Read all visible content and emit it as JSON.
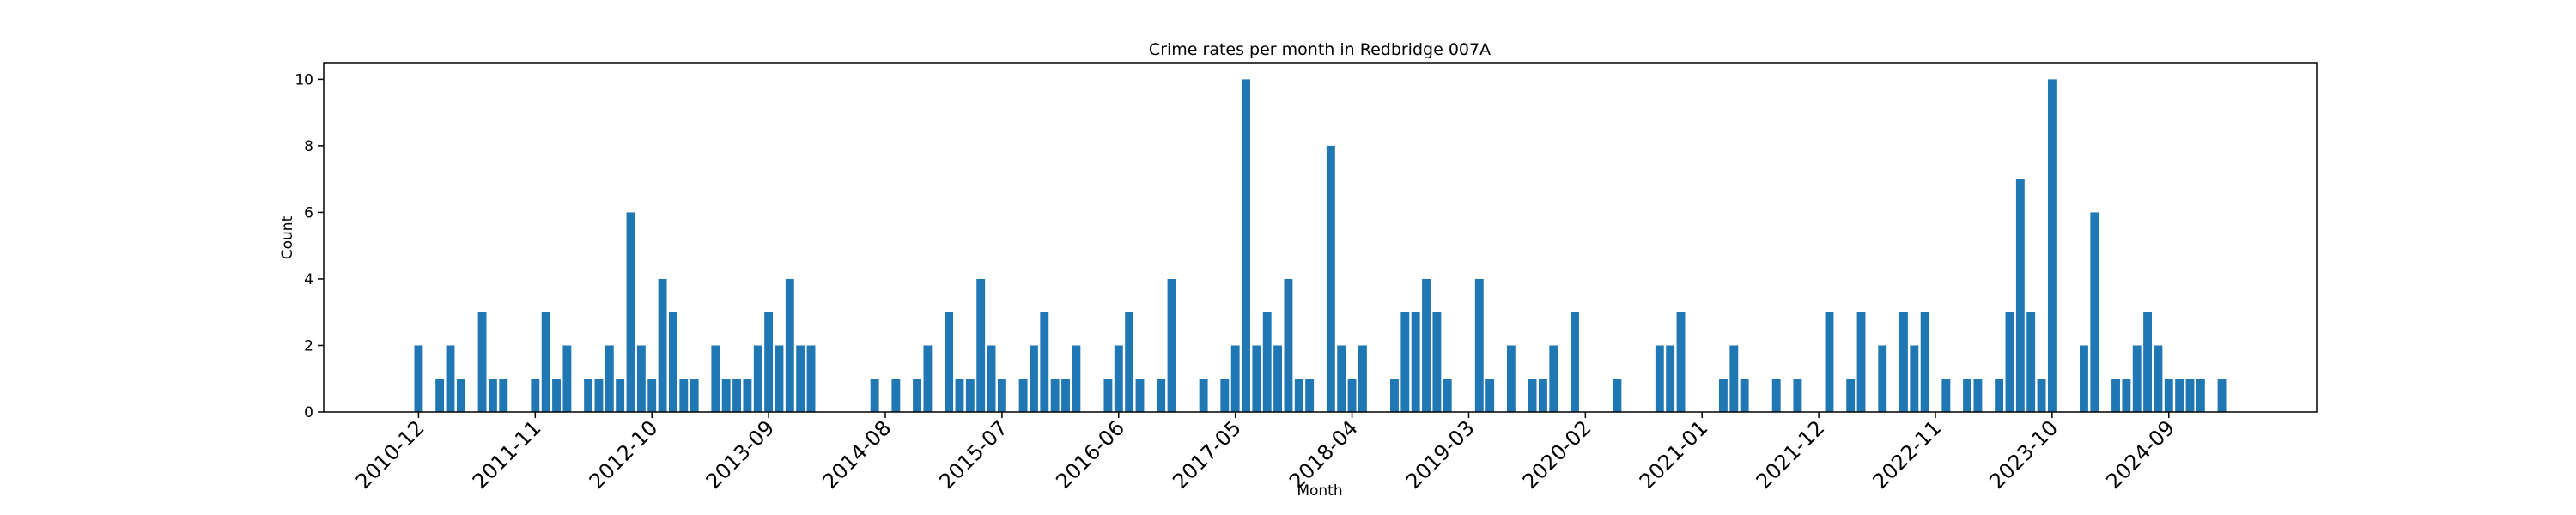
{
  "chart_data": {
    "type": "bar",
    "title": "Crime rates per month in Redbridge 007A",
    "x_label": "Month",
    "y_label": "Count",
    "color": "#1f77b4",
    "categories": [
      "2010-12",
      null,
      null,
      null,
      null,
      null,
      null,
      null,
      null,
      null,
      null,
      "2011-11",
      null,
      null,
      null,
      null,
      null,
      null,
      null,
      null,
      null,
      null,
      "2012-10",
      null,
      null,
      null,
      null,
      null,
      null,
      null,
      null,
      null,
      null,
      "2013-09",
      null,
      null,
      null,
      null,
      null,
      null,
      null,
      null,
      null,
      null,
      "2014-08",
      null,
      null,
      null,
      null,
      null,
      null,
      null,
      null,
      null,
      null,
      "2015-07",
      null,
      null,
      null,
      null,
      null,
      null,
      null,
      null,
      null,
      null,
      "2016-06",
      null,
      null,
      null,
      null,
      null,
      null,
      null,
      null,
      null,
      null,
      "2017-05",
      null,
      null,
      null,
      null,
      null,
      null,
      null,
      null,
      null,
      null,
      "2018-04",
      null,
      null,
      null,
      null,
      null,
      null,
      null,
      null,
      null,
      null,
      "2019-03",
      null,
      null,
      null,
      null,
      null,
      null,
      null,
      null,
      null,
      null,
      "2020-02",
      null,
      null,
      null,
      null,
      null,
      null,
      null,
      null,
      null,
      null,
      "2021-01",
      null,
      null,
      null,
      null,
      null,
      null,
      null,
      null,
      null,
      null,
      "2021-12",
      null,
      null,
      null,
      null,
      null,
      null,
      null,
      null,
      null,
      null,
      "2022-11",
      null,
      null,
      null,
      null,
      null,
      null,
      null,
      null,
      null,
      null,
      "2023-10",
      null,
      null,
      null,
      null,
      null,
      null,
      null,
      null,
      null,
      null,
      "2024-09",
      null,
      null,
      null,
      null,
      null
    ],
    "values": [
      2,
      0,
      1,
      2,
      1,
      0,
      3,
      1,
      1,
      0,
      0,
      1,
      3,
      1,
      2,
      0,
      1,
      1,
      2,
      1,
      6,
      2,
      1,
      4,
      3,
      1,
      1,
      0,
      2,
      1,
      1,
      1,
      2,
      3,
      2,
      4,
      2,
      2,
      0,
      0,
      0,
      0,
      0,
      1,
      0,
      1,
      0,
      1,
      2,
      0,
      3,
      1,
      1,
      4,
      2,
      1,
      0,
      1,
      2,
      3,
      1,
      1,
      2,
      0,
      0,
      1,
      2,
      3,
      1,
      0,
      1,
      4,
      0,
      0,
      1,
      0,
      1,
      2,
      10,
      2,
      3,
      2,
      4,
      1,
      1,
      0,
      8,
      2,
      1,
      2,
      0,
      0,
      1,
      3,
      3,
      4,
      3,
      1,
      0,
      0,
      4,
      1,
      0,
      2,
      0,
      1,
      1,
      2,
      0,
      3,
      0,
      0,
      0,
      1,
      0,
      0,
      0,
      2,
      2,
      3,
      0,
      0,
      0,
      1,
      2,
      1,
      0,
      0,
      1,
      0,
      1,
      0,
      0,
      3,
      0,
      1,
      3,
      0,
      2,
      0,
      3,
      2,
      3,
      0,
      1,
      0,
      1,
      1,
      0,
      1,
      3,
      7,
      3,
      1,
      10,
      0,
      0,
      2,
      6,
      0,
      1,
      1,
      2,
      3,
      2,
      1,
      1,
      1,
      1,
      0,
      1
    ],
    "ylim": [
      0,
      10.5
    ],
    "yticks": [
      0,
      2,
      4,
      6,
      8,
      10
    ],
    "grid": false
  }
}
